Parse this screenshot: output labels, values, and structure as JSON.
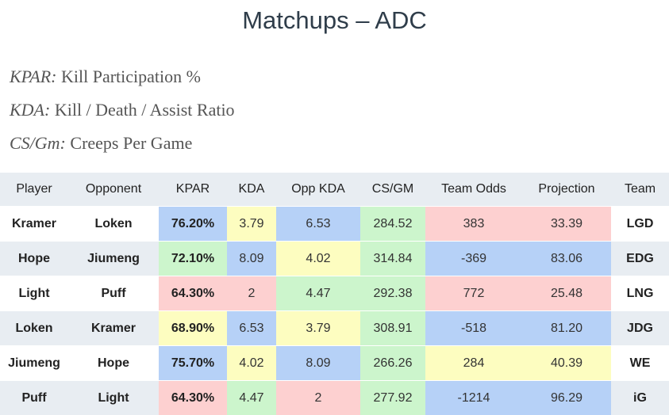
{
  "title": "Matchups – ADC",
  "legend": [
    {
      "abbr": "KPAR:",
      "text": " Kill Participation %"
    },
    {
      "abbr": "KDA:",
      "text": " Kill / Death / Assist Ratio"
    },
    {
      "abbr": "CS/Gm:",
      "text": " Creeps Per Game"
    }
  ],
  "colors": {
    "blue": "#b6d1f7",
    "yellow": "#fdfdc0",
    "green": "#ccf5cc",
    "red": "#fdd0d0",
    "header_bg": "#e8edf2"
  },
  "table": {
    "headers": [
      "Player",
      "Opponent",
      "KPAR",
      "KDA",
      "Opp KDA",
      "CS/GM",
      "Team Odds",
      "Projection",
      "Team"
    ],
    "rows": [
      {
        "player": "Kramer",
        "opponent": "Loken",
        "kpar": "76.20%",
        "kda": "3.79",
        "opp_kda": "6.53",
        "cs_gm": "284.52",
        "team_odds": "383",
        "projection": "33.39",
        "team": "LGD"
      },
      {
        "player": "Hope",
        "opponent": "Jiumeng",
        "kpar": "72.10%",
        "kda": "8.09",
        "opp_kda": "4.02",
        "cs_gm": "314.84",
        "team_odds": "-369",
        "projection": "83.06",
        "team": "EDG"
      },
      {
        "player": "Light",
        "opponent": "Puff",
        "kpar": "64.30%",
        "kda": "2",
        "opp_kda": "4.47",
        "cs_gm": "292.38",
        "team_odds": "772",
        "projection": "25.48",
        "team": "LNG"
      },
      {
        "player": "Loken",
        "opponent": "Kramer",
        "kpar": "68.90%",
        "kda": "6.53",
        "opp_kda": "3.79",
        "cs_gm": "308.91",
        "team_odds": "-518",
        "projection": "81.20",
        "team": "JDG"
      },
      {
        "player": "Jiumeng",
        "opponent": "Hope",
        "kpar": "75.70%",
        "kda": "4.02",
        "opp_kda": "8.09",
        "cs_gm": "266.26",
        "team_odds": "284",
        "projection": "40.39",
        "team": "WE"
      },
      {
        "player": "Puff",
        "opponent": "Light",
        "kpar": "64.30%",
        "kda": "4.47",
        "opp_kda": "2",
        "cs_gm": "277.92",
        "team_odds": "-1214",
        "projection": "96.29",
        "team": "iG"
      }
    ]
  }
}
